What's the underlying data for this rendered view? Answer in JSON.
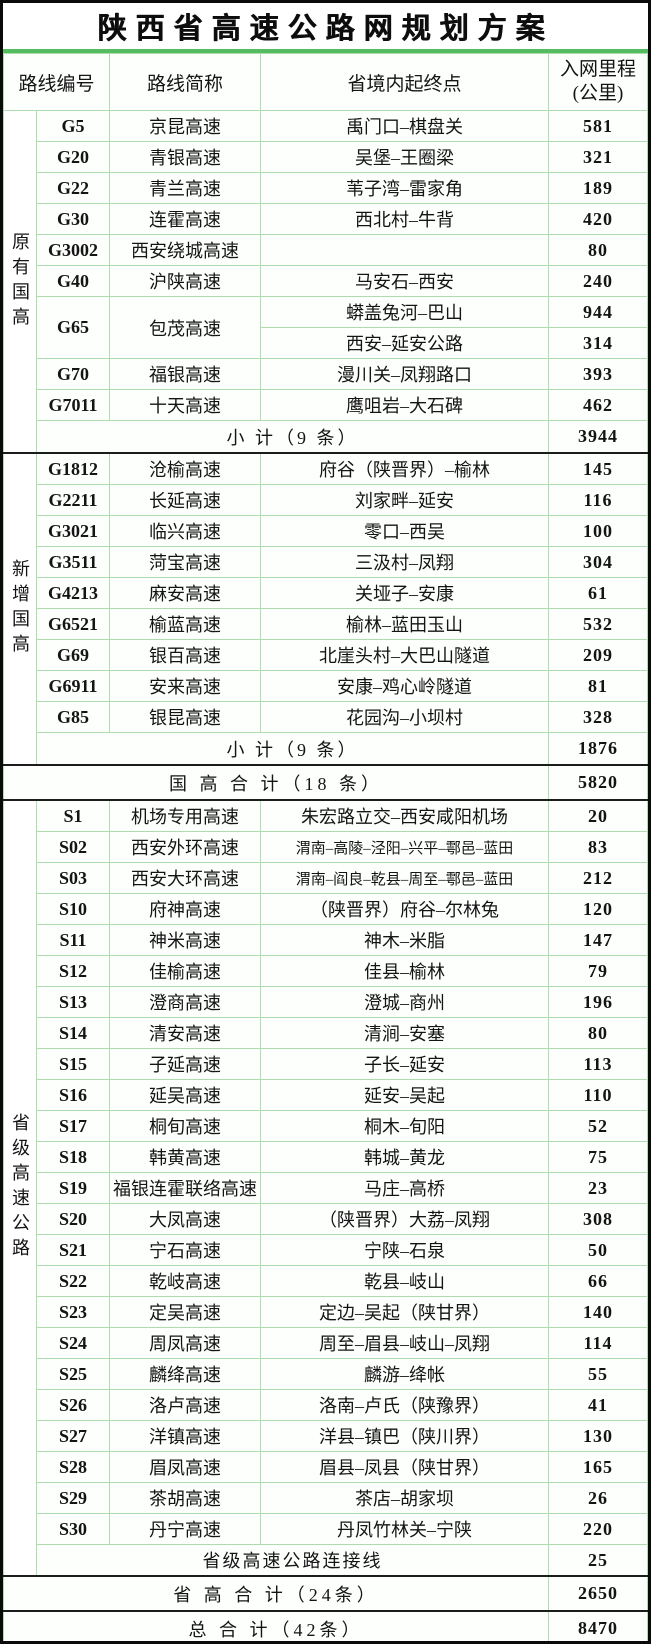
{
  "title": "陕西省高速公路网规划方案",
  "header": {
    "route_no": "路线编号",
    "route_name": "路线简称",
    "endpoints": "省境内起终点",
    "mileage_l1": "入网里程",
    "mileage_l2": "(公里)"
  },
  "colors": {
    "grid_green": "#aedcae",
    "rule_green": "#53bd5f",
    "outer_border": "#0a0a0a"
  },
  "sections": {
    "old": {
      "group": "原有国高",
      "rows": [
        {
          "no": "G5",
          "name": "京昆高速",
          "end": "禹门口–棋盘关",
          "km": "581"
        },
        {
          "no": "G20",
          "name": "青银高速",
          "end": "吴堡–王圈梁",
          "km": "321"
        },
        {
          "no": "G22",
          "name": "青兰高速",
          "end": "苇子湾–雷家角",
          "km": "189"
        },
        {
          "no": "G30",
          "name": "连霍高速",
          "end": "西北村–牛背",
          "km": "420"
        },
        {
          "no": "G3002",
          "name": "西安绕城高速",
          "end": "",
          "km": "80"
        },
        {
          "no": "G40",
          "name": "沪陕高速",
          "end": "马安石–西安",
          "km": "240"
        },
        {
          "no": "G65",
          "name": "包茂高速",
          "end": "蟒盖兔河–巴山",
          "km": "944"
        },
        {
          "no": "",
          "name": "",
          "end": "西安–延安公路",
          "km": "314"
        },
        {
          "no": "G70",
          "name": "福银高速",
          "end": "漫川关–凤翔路口",
          "km": "393"
        },
        {
          "no": "G7011",
          "name": "十天高速",
          "end": "鹰咀岩–大石碑",
          "km": "462"
        }
      ],
      "subtotal": {
        "label": "小 计（9 条）",
        "km": "3944"
      }
    },
    "new": {
      "group": "新增国高",
      "rows": [
        {
          "no": "G1812",
          "name": "沧榆高速",
          "end": "府谷（陕晋界）–榆林",
          "km": "145"
        },
        {
          "no": "G2211",
          "name": "长延高速",
          "end": "刘家畔–延安",
          "km": "116"
        },
        {
          "no": "G3021",
          "name": "临兴高速",
          "end": "零口–西吴",
          "km": "100"
        },
        {
          "no": "G3511",
          "name": "菏宝高速",
          "end": "三汲村–凤翔",
          "km": "304"
        },
        {
          "no": "G4213",
          "name": "麻安高速",
          "end": "关垭子–安康",
          "km": "61"
        },
        {
          "no": "G6521",
          "name": "榆蓝高速",
          "end": "榆林–蓝田玉山",
          "km": "532"
        },
        {
          "no": "G69",
          "name": "银百高速",
          "end": "北崖头村–大巴山隧道",
          "km": "209"
        },
        {
          "no": "G6911",
          "name": "安来高速",
          "end": "安康–鸡心岭隧道",
          "km": "81"
        },
        {
          "no": "G85",
          "name": "银昆高速",
          "end": "花园沟–小坝村",
          "km": "328"
        }
      ],
      "subtotal": {
        "label": "小 计（9 条）",
        "km": "1876"
      }
    },
    "prov": {
      "group": "省级高速公路",
      "rows": [
        {
          "no": "S1",
          "name": "机场专用高速",
          "end": "朱宏路立交–西安咸阳机场",
          "km": "20"
        },
        {
          "no": "S02",
          "name": "西安外环高速",
          "end": "渭南–高陵–泾阳–兴平–鄠邑–蓝田",
          "km": "83"
        },
        {
          "no": "S03",
          "name": "西安大环高速",
          "end": "渭南–阎良–乾县–周至–鄠邑–蓝田",
          "km": "212"
        },
        {
          "no": "S10",
          "name": "府神高速",
          "end": "（陕晋界）府谷–尔林兔",
          "km": "120"
        },
        {
          "no": "S11",
          "name": "神米高速",
          "end": "神木–米脂",
          "km": "147"
        },
        {
          "no": "S12",
          "name": "佳榆高速",
          "end": "佳县–榆林",
          "km": "79"
        },
        {
          "no": "S13",
          "name": "澄商高速",
          "end": "澄城–商州",
          "km": "196"
        },
        {
          "no": "S14",
          "name": "清安高速",
          "end": "清涧–安塞",
          "km": "80"
        },
        {
          "no": "S15",
          "name": "子延高速",
          "end": "子长–延安",
          "km": "113"
        },
        {
          "no": "S16",
          "name": "延吴高速",
          "end": "延安–吴起",
          "km": "110"
        },
        {
          "no": "S17",
          "name": "桐旬高速",
          "end": "桐木–旬阳",
          "km": "52"
        },
        {
          "no": "S18",
          "name": "韩黄高速",
          "end": "韩城–黄龙",
          "km": "75"
        },
        {
          "no": "S19",
          "name": "福银连霍联络高速",
          "end": "马庄–高桥",
          "km": "23"
        },
        {
          "no": "S20",
          "name": "大凤高速",
          "end": "（陕晋界）大荔–凤翔",
          "km": "308"
        },
        {
          "no": "S21",
          "name": "宁石高速",
          "end": "宁陕–石泉",
          "km": "50"
        },
        {
          "no": "S22",
          "name": "乾岐高速",
          "end": "乾县–岐山",
          "km": "66"
        },
        {
          "no": "S23",
          "name": "定吴高速",
          "end": "定边–吴起（陕甘界）",
          "km": "140"
        },
        {
          "no": "S24",
          "name": "周凤高速",
          "end": "周至–眉县–岐山–凤翔",
          "km": "114"
        },
        {
          "no": "S25",
          "name": "麟绛高速",
          "end": "麟游–绛帐",
          "km": "55"
        },
        {
          "no": "S26",
          "name": "洛卢高速",
          "end": "洛南–卢氏（陕豫界）",
          "km": "41"
        },
        {
          "no": "S27",
          "name": "洋镇高速",
          "end": "洋县–镇巴（陕川界）",
          "km": "130"
        },
        {
          "no": "S28",
          "name": "眉凤高速",
          "end": "眉县–凤县（陕甘界）",
          "km": "165"
        },
        {
          "no": "S29",
          "name": "茶胡高速",
          "end": "茶店–胡家坝",
          "km": "26"
        },
        {
          "no": "S30",
          "name": "丹宁高速",
          "end": "丹凤竹林关–宁陕",
          "km": "220"
        }
      ],
      "connector": {
        "label": "省级高速公路连接线",
        "km": "25"
      }
    }
  },
  "totals": {
    "national": {
      "label": "国 高 合 计（18 条）",
      "km": "5820"
    },
    "provincial": {
      "label": "省 高 合 计（24条）",
      "km": "2650"
    },
    "grand": {
      "label": "总 合 计（42条）",
      "km": "8470"
    }
  }
}
